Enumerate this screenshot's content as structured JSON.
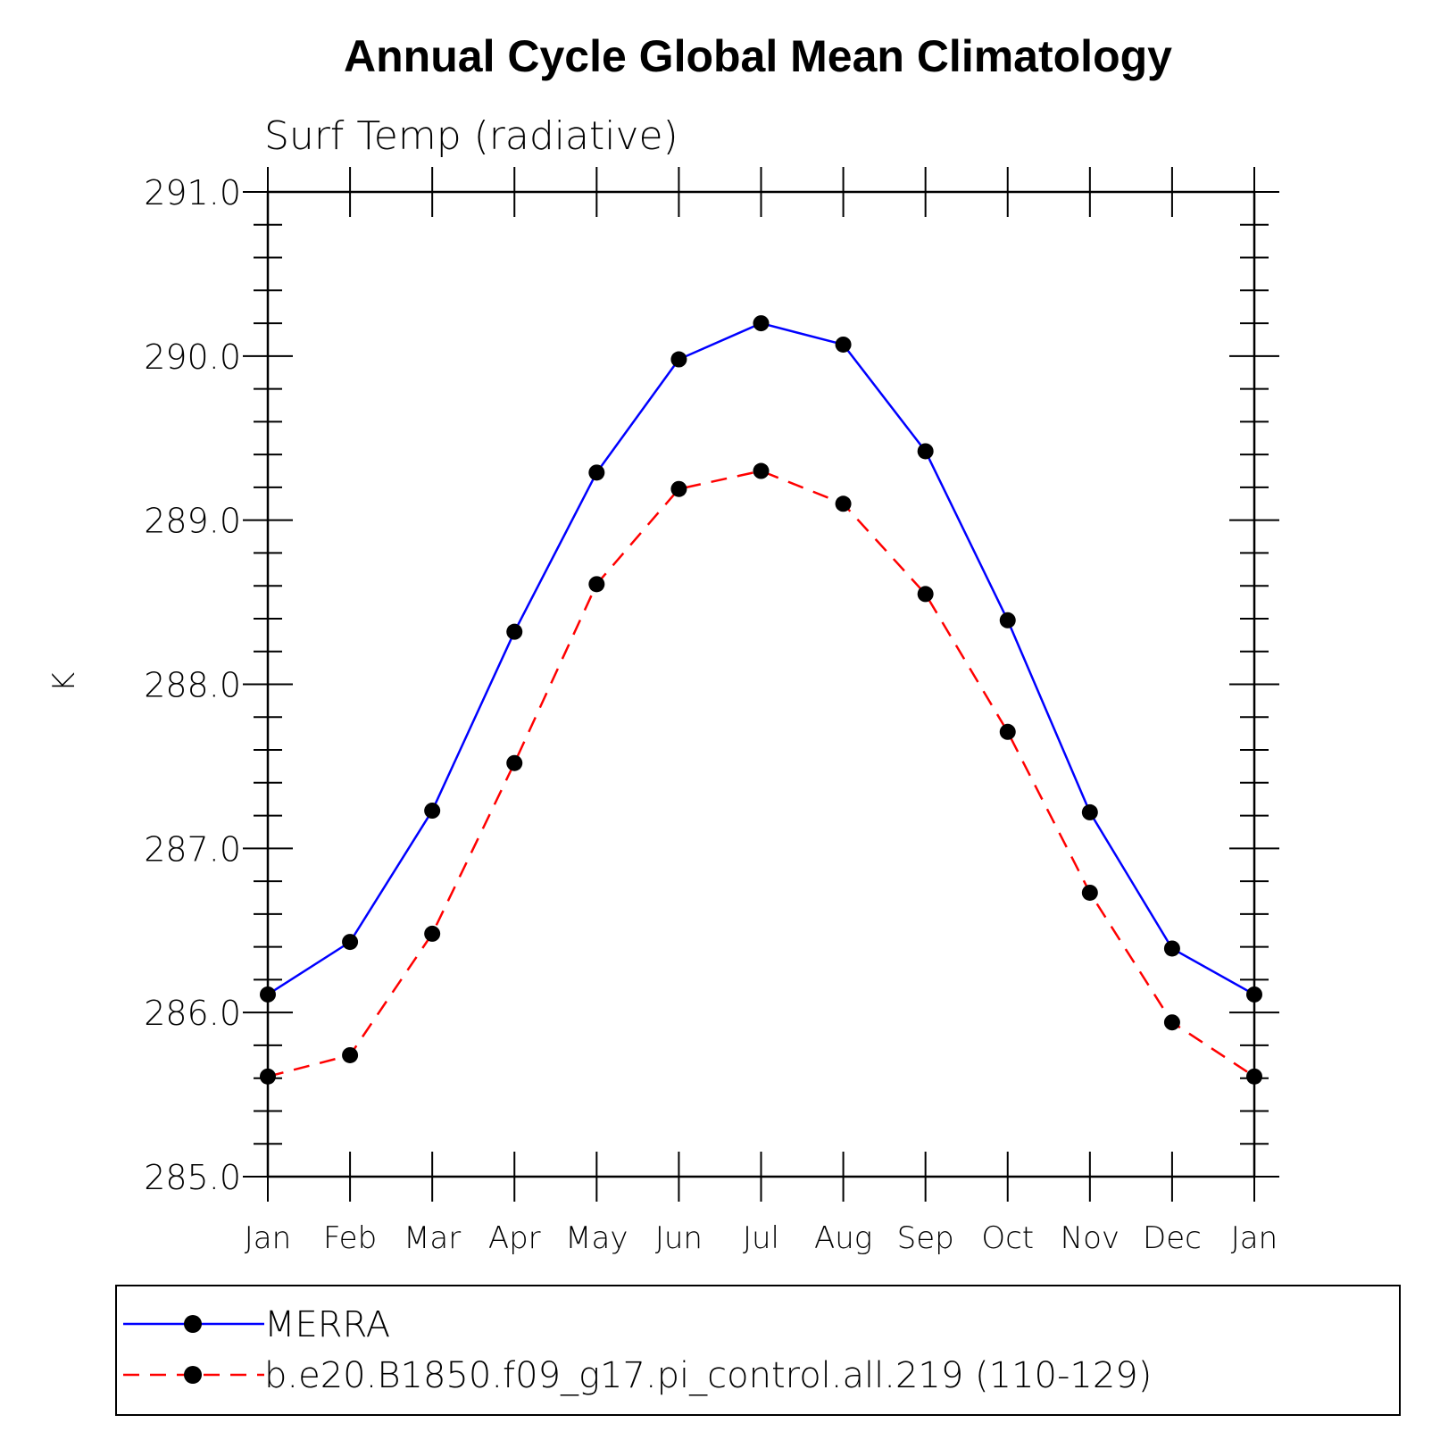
{
  "chart_data": {
    "type": "line",
    "title": "Annual Cycle Global Mean Climatology",
    "subtitle": "Surf Temp (radiative)",
    "xlabel": "",
    "ylabel": "K",
    "categories": [
      "Jan",
      "Feb",
      "Mar",
      "Apr",
      "May",
      "Jun",
      "Jul",
      "Aug",
      "Sep",
      "Oct",
      "Nov",
      "Dec",
      "Jan"
    ],
    "ylim": [
      285.0,
      291.0
    ],
    "yticks": [
      "285.0",
      "286.0",
      "287.0",
      "288.0",
      "289.0",
      "290.0",
      "291.0"
    ],
    "grid": false,
    "legend_position": "bottom",
    "series": [
      {
        "name": "MERRA",
        "color": "#0000ff",
        "line_style": "solid",
        "marker": "filled-circle",
        "values": [
          286.11,
          286.43,
          287.23,
          288.32,
          289.29,
          289.98,
          290.2,
          290.07,
          289.42,
          288.39,
          287.22,
          286.39,
          286.11
        ]
      },
      {
        "name": "b.e20.B1850.f09_g17.pi_control.all.219 (110-129)",
        "color": "#ff0000",
        "line_style": "dashed",
        "marker": "filled-circle",
        "values": [
          285.61,
          285.74,
          286.48,
          287.52,
          288.61,
          289.19,
          289.3,
          289.1,
          288.55,
          287.71,
          286.73,
          285.94,
          285.61
        ]
      }
    ]
  }
}
